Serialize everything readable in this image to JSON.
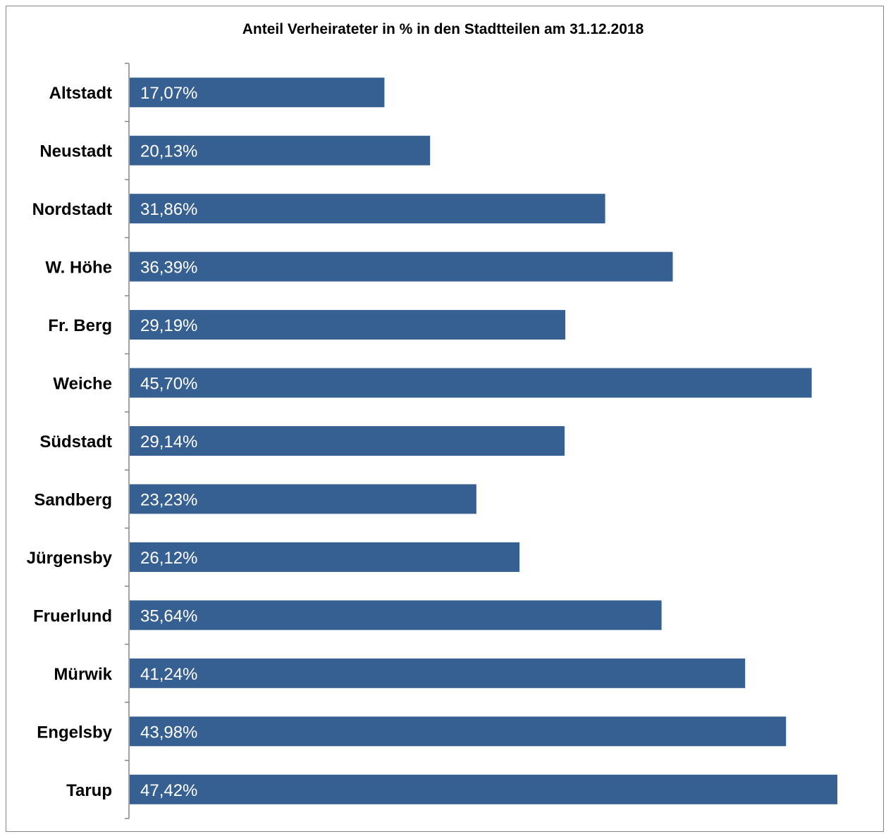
{
  "chart_data": {
    "type": "bar",
    "orientation": "horizontal",
    "title": "Anteil Verheirateter in % in den Stadtteilen am 31.12.2018",
    "xlabel": "",
    "ylabel": "",
    "xlim": [
      0,
      48
    ],
    "grid": false,
    "legend": "none",
    "bar_color": "#376092",
    "categories": [
      "Altstadt",
      "Neustadt",
      "Nordstadt",
      "W. Höhe",
      "Fr. Berg",
      "Weiche",
      "Südstadt",
      "Sandberg",
      "Jürgensby",
      "Fruerlund",
      "Mürwik",
      "Engelsby",
      "Tarup"
    ],
    "values": [
      17.07,
      20.13,
      31.86,
      36.39,
      29.19,
      45.7,
      29.14,
      23.23,
      26.12,
      35.64,
      41.24,
      43.98,
      47.42
    ],
    "data_labels": [
      "17,07%",
      "20,13%",
      "31,86%",
      "36,39%",
      "29,19%",
      "45,70%",
      "29,14%",
      "23,23%",
      "26,12%",
      "35,64%",
      "41,24%",
      "43,98%",
      "47,42%"
    ]
  }
}
